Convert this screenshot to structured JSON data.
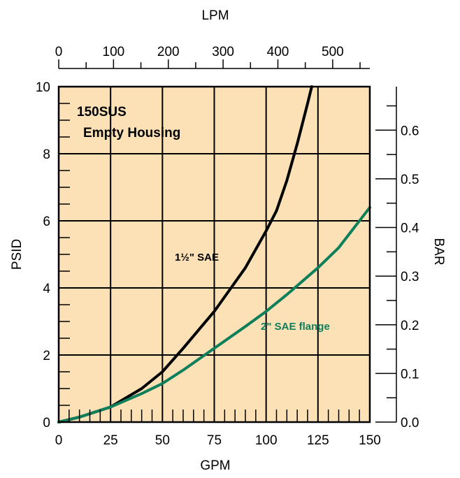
{
  "chart_data": {
    "type": "line",
    "title": "150SUS",
    "subtitle": "Empty Housing",
    "xlabel": "GPM",
    "ylabel": "PSID",
    "x2label": "LPM",
    "y2label": "BAR",
    "xlim": [
      0,
      150
    ],
    "ylim": [
      0,
      10
    ],
    "x2lim": [
      0,
      567.8
    ],
    "y2lim": [
      0,
      0.6895
    ],
    "grid": true,
    "x_ticks": [
      "0",
      "25",
      "50",
      "75",
      "100",
      "125",
      "150"
    ],
    "y_ticks": [
      "0",
      "2",
      "4",
      "6",
      "8",
      "10"
    ],
    "x2_ticks": [
      "0",
      "100",
      "200",
      "300",
      "400",
      "500"
    ],
    "y2_ticks": [
      "0.0",
      "0.1",
      "0.2",
      "0.3",
      "0.4",
      "0.5",
      "0.6"
    ],
    "series": [
      {
        "name": "1½\" SAE",
        "color": "#000000",
        "x": [
          0,
          10,
          25,
          40,
          50,
          60,
          75,
          90,
          100,
          105,
          110,
          115,
          120,
          122
        ],
        "y": [
          0,
          0.15,
          0.45,
          1.0,
          1.5,
          2.2,
          3.3,
          4.6,
          5.7,
          6.3,
          7.2,
          8.3,
          9.5,
          10.0
        ]
      },
      {
        "name": "2\" SAE flange",
        "color": "#0d7f5a",
        "x": [
          0,
          10,
          25,
          40,
          50,
          60,
          75,
          90,
          100,
          110,
          125,
          135,
          150
        ],
        "y": [
          0,
          0.15,
          0.45,
          0.85,
          1.15,
          1.55,
          2.2,
          2.85,
          3.3,
          3.8,
          4.6,
          5.2,
          6.4
        ]
      }
    ]
  },
  "colors": {
    "plot_background": "#fbe1b5",
    "grid": "#000000",
    "series_2": "#0d7f5a"
  }
}
